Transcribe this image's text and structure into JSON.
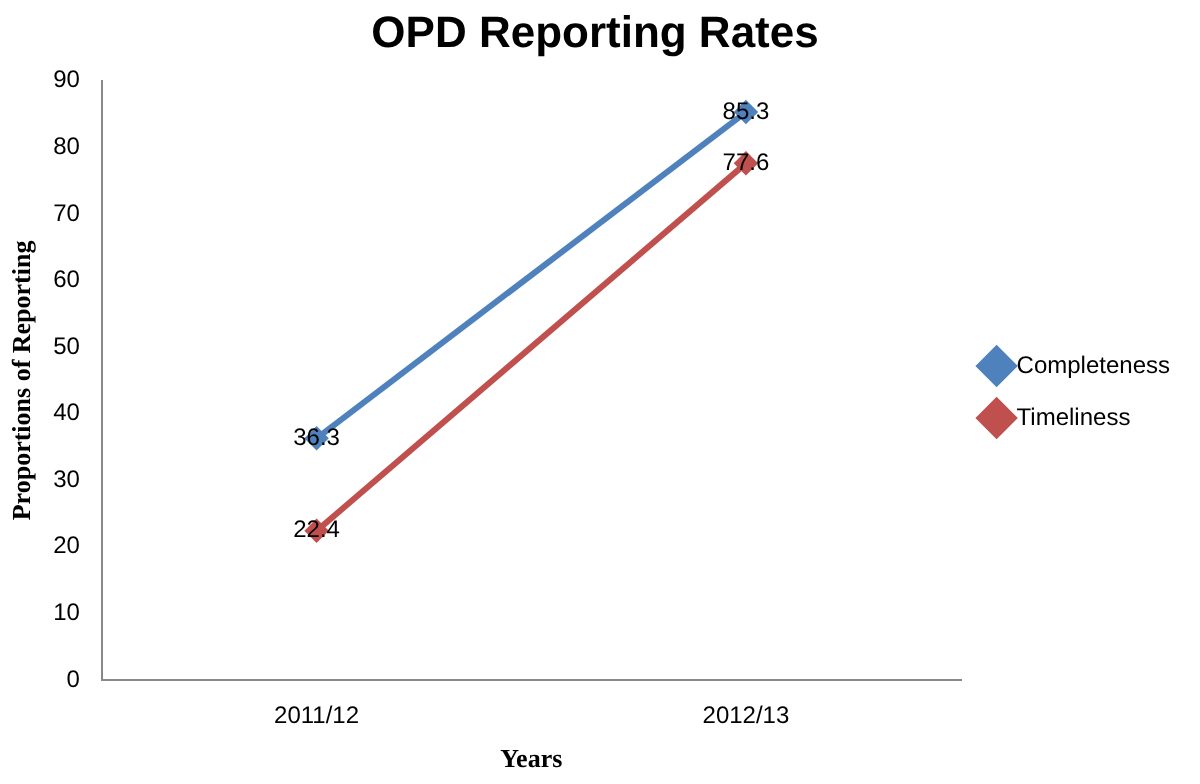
{
  "chart_data": {
    "type": "line",
    "title": "OPD Reporting Rates",
    "xlabel": "Years",
    "ylabel": "Proportions of Reporting",
    "categories": [
      "2011/12",
      "2012/13"
    ],
    "series": [
      {
        "name": "Completeness",
        "color": "#4f81bd",
        "values": [
          36.3,
          85.3
        ]
      },
      {
        "name": "Timeliness",
        "color": "#c0504d",
        "values": [
          22.4,
          77.6
        ]
      }
    ],
    "ylim": [
      0,
      90
    ],
    "yticks": [
      0,
      10,
      20,
      30,
      40,
      50,
      60,
      70,
      80,
      90
    ],
    "grid": false,
    "legend": "right",
    "marker": "diamond",
    "line_style": "solid",
    "data_labels": true
  }
}
